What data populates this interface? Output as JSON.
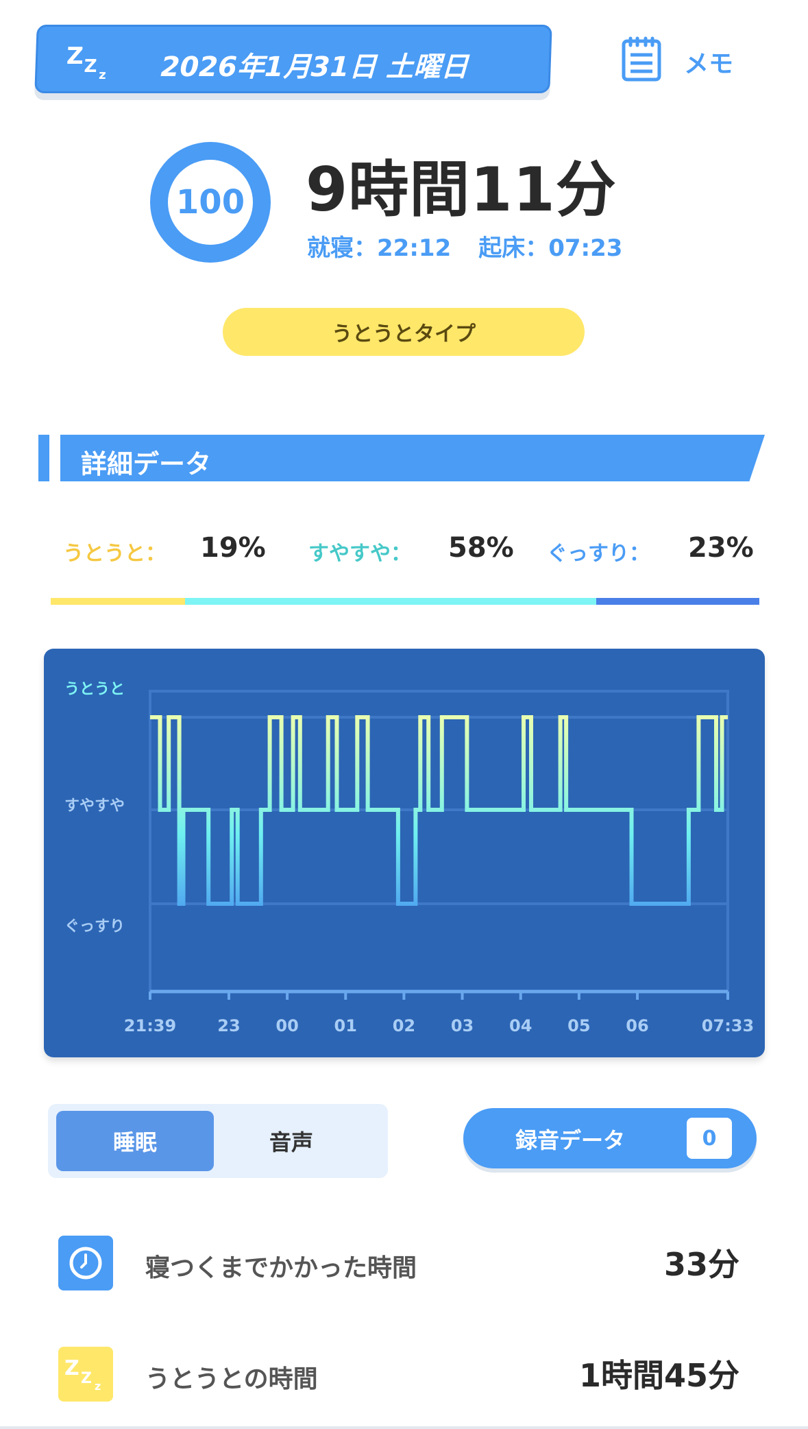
{
  "header": {
    "date": "2026年1月31日 土曜日",
    "memo_label": "メモ",
    "zzz_icon": "zzz-icon",
    "memo_icon": "notepad-icon"
  },
  "summary": {
    "score": "100",
    "duration": "9時間11分",
    "bedtime": "就寝：22:12",
    "wake": "起床：07:23",
    "type": "うとうとタイプ"
  },
  "details": {
    "section_title": "詳細データ",
    "stages": [
      {
        "label": "うとうと：",
        "value": "19%",
        "color": "#f5c842",
        "bar_color": "#ffe76a",
        "fraction": 0.19
      },
      {
        "label": "すやすや：",
        "value": "58%",
        "color": "#46c8c8",
        "bar_color": "#7ef4f4",
        "fraction": 0.58
      },
      {
        "label": "ぐっすり：",
        "value": "23%",
        "color": "#4a9cf5",
        "bar_color": "#4a7fe8",
        "fraction": 0.23
      }
    ]
  },
  "chart_data": {
    "type": "line",
    "y_levels": [
      "うとうと",
      "すやすや",
      "ぐっすり"
    ],
    "x_ticks": [
      "21:39",
      "23",
      "00",
      "01",
      "02",
      "03",
      "04",
      "05",
      "06",
      "07:33"
    ],
    "x_tick_hours": [
      21.65,
      23,
      24,
      25,
      26,
      27,
      28,
      29,
      30,
      31.55
    ],
    "xlim": [
      21.65,
      31.55
    ],
    "points": [
      [
        21.65,
        0
      ],
      [
        21.82,
        0
      ],
      [
        21.82,
        1
      ],
      [
        21.97,
        1
      ],
      [
        21.97,
        0
      ],
      [
        22.15,
        0
      ],
      [
        22.15,
        2
      ],
      [
        22.22,
        2
      ],
      [
        22.22,
        1
      ],
      [
        22.65,
        1
      ],
      [
        22.65,
        2
      ],
      [
        23.05,
        2
      ],
      [
        23.05,
        1
      ],
      [
        23.15,
        1
      ],
      [
        23.15,
        2
      ],
      [
        23.55,
        2
      ],
      [
        23.55,
        1
      ],
      [
        23.7,
        1
      ],
      [
        23.7,
        0
      ],
      [
        23.9,
        0
      ],
      [
        23.9,
        1
      ],
      [
        24.1,
        1
      ],
      [
        24.1,
        0
      ],
      [
        24.22,
        0
      ],
      [
        24.22,
        1
      ],
      [
        24.7,
        1
      ],
      [
        24.7,
        0
      ],
      [
        24.85,
        0
      ],
      [
        24.85,
        1
      ],
      [
        25.2,
        1
      ],
      [
        25.2,
        0
      ],
      [
        25.38,
        0
      ],
      [
        25.38,
        1
      ],
      [
        25.9,
        1
      ],
      [
        25.9,
        2
      ],
      [
        26.2,
        2
      ],
      [
        26.2,
        1
      ],
      [
        26.28,
        1
      ],
      [
        26.28,
        0
      ],
      [
        26.42,
        0
      ],
      [
        26.42,
        1
      ],
      [
        26.65,
        1
      ],
      [
        26.65,
        0
      ],
      [
        27.08,
        0
      ],
      [
        27.08,
        1
      ],
      [
        28.05,
        1
      ],
      [
        28.05,
        0
      ],
      [
        28.18,
        0
      ],
      [
        28.18,
        1
      ],
      [
        28.68,
        1
      ],
      [
        28.68,
        0
      ],
      [
        28.78,
        0
      ],
      [
        28.78,
        1
      ],
      [
        29.9,
        1
      ],
      [
        29.9,
        2
      ],
      [
        30.88,
        2
      ],
      [
        30.88,
        1
      ],
      [
        31.05,
        1
      ],
      [
        31.05,
        0
      ],
      [
        31.35,
        0
      ],
      [
        31.35,
        1
      ],
      [
        31.45,
        1
      ],
      [
        31.45,
        0
      ],
      [
        31.55,
        0
      ]
    ]
  },
  "controls": {
    "tab_sleep": "睡眠",
    "tab_audio": "音声",
    "recording_label": "録音データ",
    "recording_count": "0"
  },
  "stats": [
    {
      "label": "寝つくまでかかった時間",
      "value": "33分",
      "icon": "clock-icon",
      "icon_bg": "#4a9cf5"
    },
    {
      "label": "うとうとの時間",
      "value": "1時間45分",
      "icon": "zzz-icon",
      "icon_bg": "#ffe76a"
    }
  ]
}
